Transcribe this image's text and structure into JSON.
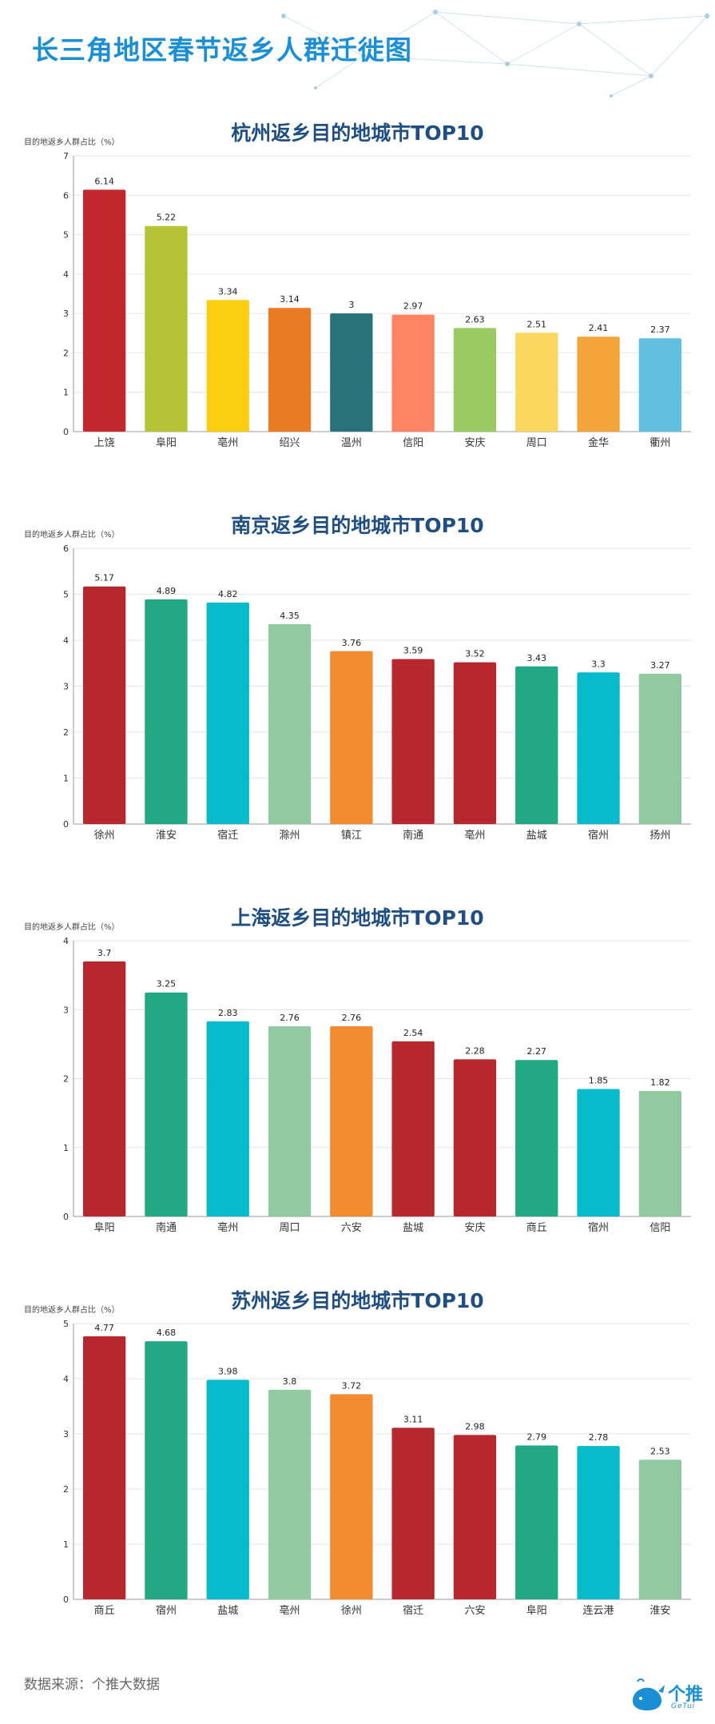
{
  "page": {
    "title": "长三角地区春节返乡人群迁徙图",
    "source": "数据来源：个推大数据",
    "logo_text": "个推",
    "logo_sub": "GeTui"
  },
  "charts": [
    {
      "title": "杭州返乡目的地城市TOP10",
      "ylabel": "目的地返乡人群占比（%）",
      "ylim": [
        0,
        7
      ],
      "ticks": [
        0,
        1,
        2,
        3,
        4,
        5,
        6,
        7
      ],
      "categories": [
        "上饶",
        "阜阳",
        "亳州",
        "绍兴",
        "温州",
        "信阳",
        "安庆",
        "周口",
        "金华",
        "衢州"
      ],
      "values": [
        6.14,
        5.22,
        3.34,
        3.14,
        3,
        2.97,
        2.63,
        2.51,
        2.41,
        2.37
      ],
      "colors": [
        "#c1272d",
        "#b5c334",
        "#fcce10",
        "#e87c25",
        "#27727b",
        "#fe8463",
        "#9bca63",
        "#fad860",
        "#f3a43b",
        "#60c0dd"
      ]
    },
    {
      "title": "南京返乡目的地城市TOP10",
      "ylabel": "目的地返乡人群占比（%）",
      "ylim": [
        0,
        6
      ],
      "ticks": [
        0,
        1,
        2,
        3,
        4,
        5,
        6
      ],
      "categories": [
        "徐州",
        "淮安",
        "宿迁",
        "滁州",
        "镇江",
        "南通",
        "亳州",
        "盐城",
        "宿州",
        "扬州"
      ],
      "values": [
        5.17,
        4.89,
        4.82,
        4.35,
        3.76,
        3.59,
        3.52,
        3.43,
        3.3,
        3.27
      ],
      "colors": [
        "#b7282e",
        "#22a884",
        "#08bbcc",
        "#91c9a0",
        "#f28b30",
        "#b7282e",
        "#b7282e",
        "#22a884",
        "#08bbcc",
        "#91c9a0"
      ]
    },
    {
      "title": "上海返乡目的地城市TOP10",
      "ylabel": "目的地返乡人群占比（%）",
      "ylim": [
        0,
        4
      ],
      "ticks": [
        0,
        1,
        2,
        3,
        4
      ],
      "categories": [
        "阜阳",
        "南通",
        "亳州",
        "周口",
        "六安",
        "盐城",
        "安庆",
        "商丘",
        "宿州",
        "信阳"
      ],
      "values": [
        3.7,
        3.25,
        2.83,
        2.76,
        2.76,
        2.54,
        2.28,
        2.27,
        1.85,
        1.82
      ],
      "colors": [
        "#b7282e",
        "#22a884",
        "#08bbcc",
        "#91c9a0",
        "#f28b30",
        "#b7282e",
        "#b7282e",
        "#22a884",
        "#08bbcc",
        "#91c9a0"
      ]
    },
    {
      "title": "苏州返乡目的地城市TOP10",
      "ylabel": "目的地返乡人群占比（%）",
      "ylim": [
        0,
        5
      ],
      "ticks": [
        0,
        1,
        2,
        3,
        4,
        5
      ],
      "categories": [
        "商丘",
        "宿州",
        "盐城",
        "亳州",
        "徐州",
        "宿迁",
        "六安",
        "阜阳",
        "连云港",
        "淮安"
      ],
      "values": [
        4.77,
        4.68,
        3.98,
        3.8,
        3.72,
        3.11,
        2.98,
        2.79,
        2.78,
        2.53
      ],
      "colors": [
        "#b7282e",
        "#22a884",
        "#08bbcc",
        "#91c9a0",
        "#f28b30",
        "#b7282e",
        "#b7282e",
        "#22a884",
        "#08bbcc",
        "#91c9a0"
      ]
    }
  ],
  "chart_data": [
    {
      "type": "bar",
      "title": "杭州返乡目的地城市TOP10",
      "ylabel": "目的地返乡人群占比（%）",
      "categories": [
        "上饶",
        "阜阳",
        "亳州",
        "绍兴",
        "温州",
        "信阳",
        "安庆",
        "周口",
        "金华",
        "衢州"
      ],
      "values": [
        6.14,
        5.22,
        3.34,
        3.14,
        3,
        2.97,
        2.63,
        2.51,
        2.41,
        2.37
      ],
      "ylim": [
        0,
        7
      ],
      "grid": true
    },
    {
      "type": "bar",
      "title": "南京返乡目的地城市TOP10",
      "ylabel": "目的地返乡人群占比（%）",
      "categories": [
        "徐州",
        "淮安",
        "宿迁",
        "滁州",
        "镇江",
        "南通",
        "亳州",
        "盐城",
        "宿州",
        "扬州"
      ],
      "values": [
        5.17,
        4.89,
        4.82,
        4.35,
        3.76,
        3.59,
        3.52,
        3.43,
        3.3,
        3.27
      ],
      "ylim": [
        0,
        6
      ],
      "grid": true
    },
    {
      "type": "bar",
      "title": "上海返乡目的地城市TOP10",
      "ylabel": "目的地返乡人群占比（%）",
      "categories": [
        "阜阳",
        "南通",
        "亳州",
        "周口",
        "六安",
        "盐城",
        "安庆",
        "商丘",
        "宿州",
        "信阳"
      ],
      "values": [
        3.7,
        3.25,
        2.83,
        2.76,
        2.76,
        2.54,
        2.28,
        2.27,
        1.85,
        1.82
      ],
      "ylim": [
        0,
        4
      ],
      "grid": true
    },
    {
      "type": "bar",
      "title": "苏州返乡目的地城市TOP10",
      "ylabel": "目的地返乡人群占比（%）",
      "categories": [
        "商丘",
        "宿州",
        "盐城",
        "亳州",
        "徐州",
        "宿迁",
        "六安",
        "阜阳",
        "连云港",
        "淮安"
      ],
      "values": [
        4.77,
        4.68,
        3.98,
        3.8,
        3.72,
        3.11,
        2.98,
        2.79,
        2.78,
        2.53
      ],
      "ylim": [
        0,
        5
      ],
      "grid": true
    }
  ]
}
